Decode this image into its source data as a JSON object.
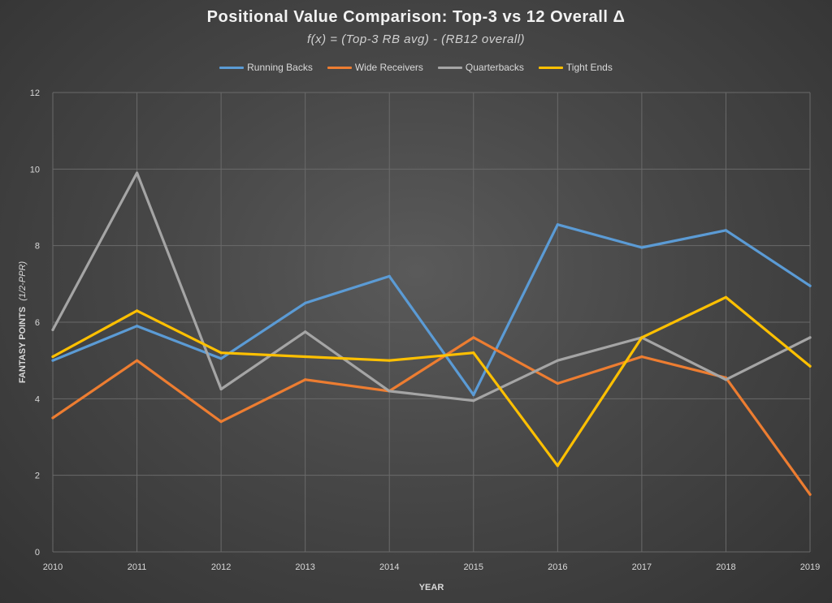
{
  "chart_data": {
    "type": "line",
    "title": "Positional Value Comparison: Top-3 vs 12 Overall Δ",
    "subtitle": "f(x) = (Top-3 RB avg) - (RB12 overall)",
    "xlabel": "YEAR",
    "ylabel": "FANTASY POINTS",
    "ylabel_unit": "(1/2-PPR)",
    "x": [
      2010,
      2011,
      2012,
      2013,
      2014,
      2015,
      2016,
      2017,
      2018,
      2019
    ],
    "ylim": [
      0,
      12
    ],
    "yticks": [
      0,
      2,
      4,
      6,
      8,
      10,
      12
    ],
    "grid": true,
    "legend_position": "top",
    "series": [
      {
        "name": "Running Backs",
        "color": "#5b9bd5",
        "values": [
          5.0,
          5.9,
          5.05,
          6.5,
          7.2,
          4.1,
          8.55,
          7.95,
          8.4,
          6.95
        ]
      },
      {
        "name": "Wide Receivers",
        "color": "#ed7d31",
        "values": [
          3.5,
          5.0,
          3.4,
          4.5,
          4.2,
          5.6,
          4.4,
          5.1,
          4.55,
          1.5
        ]
      },
      {
        "name": "Quarterbacks",
        "color": "#a5a5a5",
        "values": [
          5.8,
          9.9,
          4.25,
          5.75,
          4.2,
          3.95,
          5.0,
          5.6,
          4.5,
          5.6
        ]
      },
      {
        "name": "Tight Ends",
        "color": "#ffc000",
        "values": [
          5.1,
          6.3,
          5.2,
          5.1,
          5.0,
          5.2,
          2.25,
          5.6,
          6.65,
          4.85
        ]
      }
    ]
  }
}
